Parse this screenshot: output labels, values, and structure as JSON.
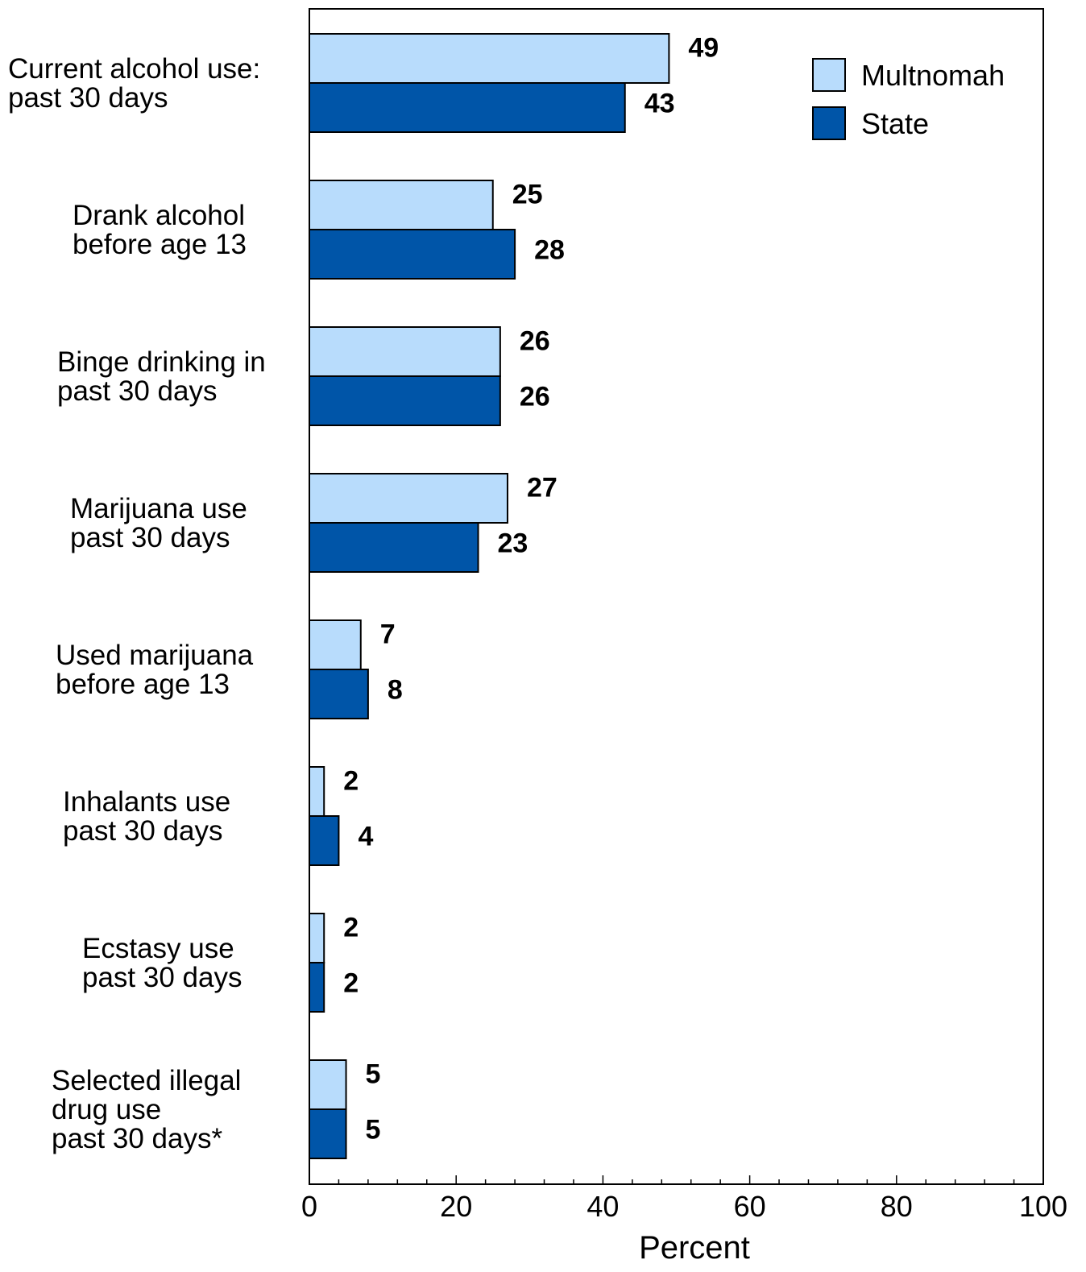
{
  "chart_data": {
    "type": "bar",
    "orientation": "horizontal",
    "categories": [
      [
        "Current alcohol use:",
        "past 30 days"
      ],
      [
        "Drank alcohol",
        "before age 13"
      ],
      [
        "Binge drinking in",
        "past 30 days"
      ],
      [
        "Marijuana use",
        "past 30 days"
      ],
      [
        "Used marijuana",
        "before age 13"
      ],
      [
        "Inhalants use",
        "past 30 days"
      ],
      [
        "Ecstasy use",
        "past 30 days"
      ],
      [
        "Selected illegal",
        "drug use",
        "past 30 days*"
      ]
    ],
    "series": [
      {
        "name": "Multnomah",
        "color": "#b8dcfc",
        "values": [
          49,
          25,
          26,
          27,
          7,
          2,
          2,
          5
        ]
      },
      {
        "name": "State",
        "color": "#0055a8",
        "values": [
          43,
          28,
          26,
          23,
          8,
          4,
          2,
          5
        ]
      }
    ],
    "xlabel": "Percent",
    "xlim": [
      0,
      100
    ],
    "xticks": [
      0,
      20,
      40,
      60,
      80,
      100
    ],
    "legend_position": "top-right",
    "grid": false
  }
}
